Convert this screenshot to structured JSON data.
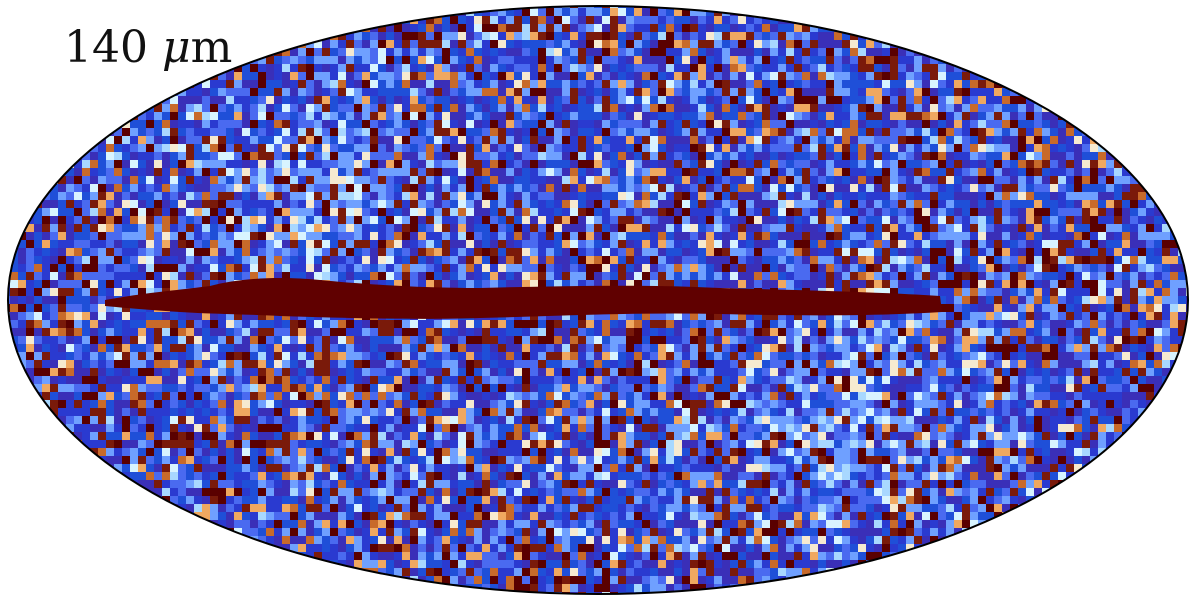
{
  "figure": {
    "label": {
      "value": "140",
      "unit_symbol": "μ",
      "unit_suffix": "m"
    }
  },
  "colors": {
    "background": "#ffffff",
    "outline": "#000000",
    "palette": [
      "#2a3ad0",
      "#3a2fb8",
      "#1f4fd8",
      "#4a6af0",
      "#6fa0ff",
      "#a8d8ff",
      "#d8f4ff",
      "#f6ead0",
      "#f0a860",
      "#c86a2a",
      "#7a1a0a",
      "#5a0000"
    ],
    "plane_color": "#600000"
  }
}
